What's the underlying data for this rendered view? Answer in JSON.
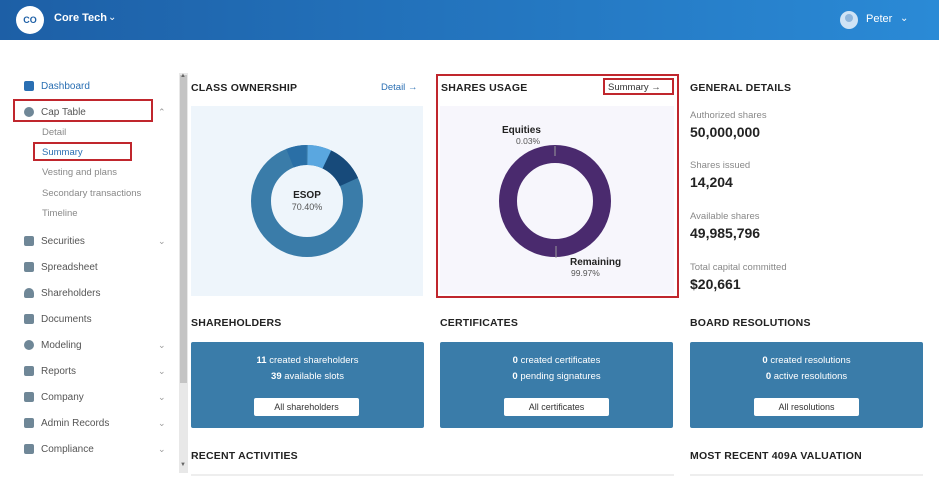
{
  "header": {
    "logo_initials": "CO",
    "company": "Core Tech",
    "user": "Peter"
  },
  "sidebar": {
    "items": [
      {
        "label": "Dashboard"
      },
      {
        "label": "Cap Table"
      },
      {
        "label": "Securities"
      },
      {
        "label": "Spreadsheet"
      },
      {
        "label": "Shareholders"
      },
      {
        "label": "Documents"
      },
      {
        "label": "Modeling"
      },
      {
        "label": "Reports"
      },
      {
        "label": "Company"
      },
      {
        "label": "Admin Records"
      },
      {
        "label": "Compliance"
      }
    ],
    "cap_table_sub": [
      "Detail",
      "Summary",
      "Vesting and plans",
      "Secondary transactions",
      "Timeline"
    ]
  },
  "class_ownership": {
    "title": "CLASS OWNERSHIP",
    "link": "Detail",
    "center_label": "ESOP",
    "center_value": "70.40%"
  },
  "shares_usage": {
    "title": "SHARES USAGE",
    "link": "Summary",
    "equities_label": "Equities",
    "equities_value": "0.03%",
    "remaining_label": "Remaining",
    "remaining_value": "99.97%"
  },
  "general": {
    "title": "GENERAL DETAILS",
    "authorized_label": "Authorized shares",
    "authorized_value": "50,000,000",
    "issued_label": "Shares issued",
    "issued_value": "14,204",
    "available_label": "Available shares",
    "available_value": "49,985,796",
    "capital_label": "Total capital committed",
    "capital_value": "$20,661"
  },
  "shareholders": {
    "title": "SHAREHOLDERS",
    "count1": "11",
    "text1": "created shareholders",
    "count2": "39",
    "text2": "available slots",
    "button": "All shareholders"
  },
  "certificates": {
    "title": "CERTIFICATES",
    "count1": "0",
    "text1": "created certificates",
    "count2": "0",
    "text2": "pending signatures",
    "button": "All certificates"
  },
  "board": {
    "title": "BOARD RESOLUTIONS",
    "count1": "0",
    "text1": "created resolutions",
    "count2": "0",
    "text2": "active resolutions",
    "button": "All resolutions"
  },
  "recent_activities": {
    "title": "RECENT ACTIVITIES"
  },
  "valuation": {
    "title": "MOST RECENT 409A VALUATION"
  },
  "colors": {
    "header_start": "#1d5fa6",
    "header_end": "#2a8ad6",
    "donut_primary": "#2f6e9e",
    "donut_purple": "#4a2a6e",
    "card_blue": "#3a7ca9",
    "highlight_red": "#c0262d"
  }
}
